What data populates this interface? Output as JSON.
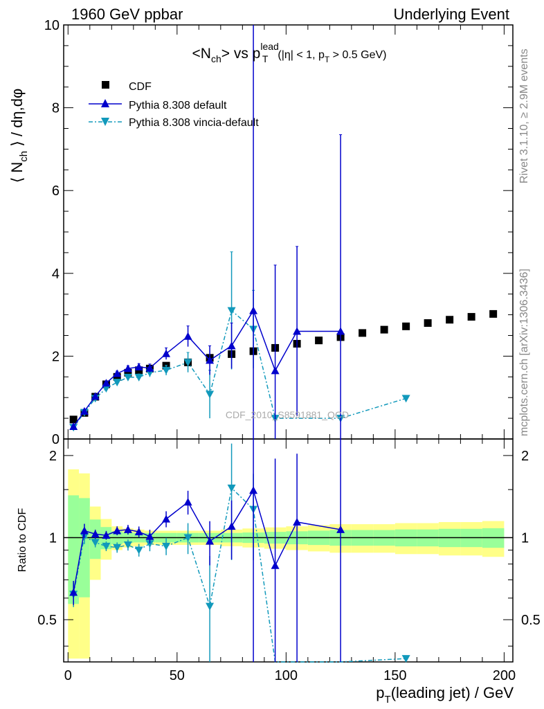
{
  "header": {
    "left": "1960 GeV ppbar",
    "right": "Underlying Event"
  },
  "side_labels": {
    "rivet": "Rivet 3.1.10, ≥ 2.9M events",
    "mcplots": "mcplots.cern.ch [arXiv:1306.3436]"
  },
  "watermark": "CDF_2010_S8591881_QCD",
  "colors": {
    "data": "#000000",
    "default": "#0000cc",
    "vincia": "#1199bb",
    "band_inner": "#99ff99",
    "band_outer": "#ffff88"
  },
  "chart_data": [
    {
      "type": "line",
      "title": "<N_ch> vs p_T^lead (|η| < 1, p_T > 0.5 GeV)",
      "ylabel": "⟨ N_ch ⟩ / dη,dφ",
      "xlim": [
        -2,
        204
      ],
      "ylim": [
        0,
        10
      ],
      "y_ticks": [
        0,
        2,
        4,
        6,
        8,
        10
      ],
      "legend": "top-left",
      "series": [
        {
          "name": "CDF",
          "marker": "square",
          "x": [
            2.5,
            7.5,
            12.5,
            17.5,
            22.5,
            27.5,
            32.5,
            37.5,
            45,
            55,
            65,
            75,
            85,
            95,
            105,
            115,
            125,
            135,
            145,
            155,
            165,
            175,
            185,
            195
          ],
          "y": [
            0.47,
            0.63,
            1.02,
            1.32,
            1.5,
            1.6,
            1.66,
            1.7,
            1.77,
            1.85,
            1.96,
            2.05,
            2.12,
            2.2,
            2.3,
            2.38,
            2.46,
            2.56,
            2.64,
            2.72,
            2.8,
            2.88,
            2.95,
            3.02
          ]
        },
        {
          "name": "Pythia 8.308 default",
          "marker": "triangle-up",
          "x": [
            2.5,
            7.5,
            12.5,
            17.5,
            22.5,
            27.5,
            32.5,
            37.5,
            45,
            55,
            65,
            75,
            85,
            95,
            105,
            125
          ],
          "y": [
            0.3,
            0.67,
            1.03,
            1.35,
            1.58,
            1.7,
            1.74,
            1.71,
            2.06,
            2.48,
            1.9,
            2.25,
            3.1,
            1.65,
            2.6,
            2.6
          ],
          "err": [
            0.03,
            0.04,
            0.04,
            0.05,
            0.06,
            0.07,
            0.08,
            0.1,
            0.14,
            0.25,
            0.35,
            0.55,
            7.5,
            2.55,
            2.05,
            4.75
          ]
        },
        {
          "name": "Pythia 8.308 vincia-default",
          "marker": "triangle-down",
          "x": [
            2.5,
            7.5,
            12.5,
            17.5,
            22.5,
            27.5,
            32.5,
            37.5,
            45,
            55,
            65,
            75,
            85,
            95,
            125,
            155
          ],
          "y": [
            0.28,
            0.64,
            0.98,
            1.22,
            1.37,
            1.49,
            1.49,
            1.6,
            1.66,
            1.85,
            1.08,
            3.1,
            2.65,
            0.5,
            0.5,
            0.98
          ],
          "err": [
            0.03,
            0.04,
            0.04,
            0.05,
            0.06,
            0.07,
            0.08,
            0.1,
            0.12,
            0.24,
            0.58,
            1.42,
            0.94,
            0,
            0,
            0
          ]
        }
      ]
    },
    {
      "type": "line",
      "xlabel": "p_T(leading jet) / GeV",
      "ylabel": "Ratio to CDF",
      "xlim": [
        -2,
        204
      ],
      "ylim": [
        0.35,
        2.3
      ],
      "x_ticks": [
        0,
        50,
        100,
        150,
        200
      ],
      "y_ticks": [
        0.5,
        1,
        2
      ],
      "series": [
        {
          "name": "Pythia 8.308 default",
          "x": [
            2.5,
            7.5,
            12.5,
            17.5,
            22.5,
            27.5,
            32.5,
            37.5,
            45,
            55,
            65,
            75,
            85,
            95,
            105,
            125
          ],
          "y": [
            0.63,
            1.06,
            1.03,
            1.02,
            1.06,
            1.07,
            1.05,
            1.01,
            1.17,
            1.35,
            0.97,
            1.1,
            1.49,
            0.79,
            1.14,
            1.07
          ]
        },
        {
          "name": "Pythia 8.308 vincia-default",
          "x": [
            2.5,
            7.5,
            12.5,
            17.5,
            22.5,
            27.5,
            32.5,
            37.5,
            45,
            55,
            65,
            75,
            85,
            95,
            125,
            155
          ],
          "y": [
            0.62,
            1.01,
            0.96,
            0.93,
            0.92,
            0.94,
            0.9,
            0.95,
            0.93,
            1.0,
            0.56,
            1.52,
            1.27,
            0.23,
            0.2,
            0.36
          ]
        }
      ]
    }
  ]
}
